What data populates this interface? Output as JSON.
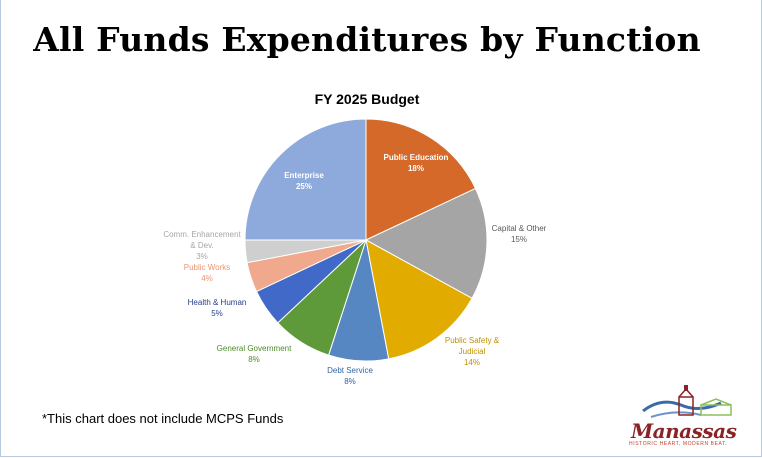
{
  "title": "All Funds Expenditures by Function",
  "footnote": "*This chart does not include MCPS Funds",
  "logo": {
    "name": "Manassas",
    "tagline": "HISTORIC HEART, MODERN BEAT."
  },
  "chart_data": {
    "type": "pie",
    "title": "FY 2025 Budget",
    "slices": [
      {
        "lines": [
          "Public Education"
        ],
        "pct": "18%",
        "value": 18,
        "color": "#d4692a",
        "label_color": "#ffffff",
        "label_pos": "inside"
      },
      {
        "lines": [
          "Capital & Other"
        ],
        "pct": "15%",
        "value": 15,
        "color": "#a5a5a5",
        "label_color": "#595959",
        "label_pos": "outside"
      },
      {
        "lines": [
          "Public Safety &",
          "Judicial"
        ],
        "pct": "14%",
        "value": 14,
        "color": "#e1ab00",
        "label_color": "#c09000",
        "label_pos": "outside"
      },
      {
        "lines": [
          "Debt Service"
        ],
        "pct": "8%",
        "value": 8,
        "color": "#5787c2",
        "label_color": "#2f65a5",
        "label_pos": "outside"
      },
      {
        "lines": [
          "General Government"
        ],
        "pct": "8%",
        "value": 8,
        "color": "#5f9a3a",
        "label_color": "#4d8a2a",
        "label_pos": "outside"
      },
      {
        "lines": [
          "Health & Human"
        ],
        "pct": "5%",
        "value": 5,
        "color": "#4169c8",
        "label_color": "#27408a",
        "label_pos": "outside"
      },
      {
        "lines": [
          "Public Works"
        ],
        "pct": "4%",
        "value": 4,
        "color": "#f0a98c",
        "label_color": "#ea9570",
        "label_pos": "outside"
      },
      {
        "lines": [
          "Comm. Enhancement",
          "& Dev."
        ],
        "pct": "3%",
        "value": 3,
        "color": "#cfcfcf",
        "label_color": "#a6a6a6",
        "label_pos": "outside"
      },
      {
        "lines": [
          "Enterprise"
        ],
        "pct": "25%",
        "value": 25,
        "color": "#8eaadc",
        "label_color": "#ffffff",
        "label_pos": "inside"
      }
    ]
  }
}
